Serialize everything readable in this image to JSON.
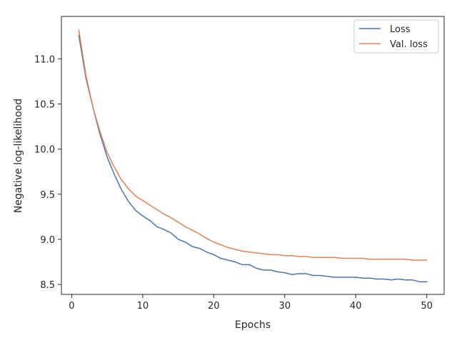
{
  "chart_data": {
    "type": "line",
    "xlabel": "Epochs",
    "ylabel": "Negative log-likelihood",
    "xlim": [
      -1.45,
      52.45
    ],
    "ylim": [
      8.39,
      11.47
    ],
    "xticks": [
      0,
      10,
      20,
      30,
      40,
      50
    ],
    "yticks": [
      8.5,
      9.0,
      9.5,
      10.0,
      10.5,
      11.0
    ],
    "ytick_labels": [
      "8.5",
      "9.0",
      "9.5",
      "10.0",
      "10.5",
      "11.0"
    ],
    "grid": false,
    "legend_position": "top-right",
    "x": [
      1,
      2,
      3,
      4,
      5,
      6,
      7,
      8,
      9,
      10,
      11,
      12,
      13,
      14,
      15,
      16,
      17,
      18,
      19,
      20,
      21,
      22,
      23,
      24,
      25,
      26,
      27,
      28,
      29,
      30,
      31,
      32,
      33,
      34,
      35,
      36,
      37,
      38,
      39,
      40,
      41,
      42,
      43,
      44,
      45,
      46,
      47,
      48,
      49,
      50
    ],
    "series": [
      {
        "name": "Loss",
        "color": "#4c72b0",
        "values": [
          11.26,
          10.79,
          10.46,
          10.16,
          9.91,
          9.72,
          9.55,
          9.42,
          9.32,
          9.26,
          9.21,
          9.14,
          9.11,
          9.07,
          9.0,
          8.97,
          8.92,
          8.9,
          8.86,
          8.83,
          8.79,
          8.77,
          8.75,
          8.72,
          8.72,
          8.68,
          8.66,
          8.66,
          8.64,
          8.63,
          8.61,
          8.62,
          8.62,
          8.6,
          8.6,
          8.59,
          8.58,
          8.58,
          8.58,
          8.58,
          8.57,
          8.57,
          8.56,
          8.56,
          8.55,
          8.56,
          8.55,
          8.55,
          8.53,
          8.53
        ]
      },
      {
        "name": "Val. loss",
        "color": "#dd8452",
        "values": [
          11.32,
          10.82,
          10.46,
          10.19,
          9.96,
          9.8,
          9.66,
          9.56,
          9.48,
          9.43,
          9.38,
          9.33,
          9.28,
          9.24,
          9.19,
          9.14,
          9.1,
          9.06,
          9.01,
          8.97,
          8.94,
          8.91,
          8.89,
          8.87,
          8.86,
          8.85,
          8.84,
          8.83,
          8.83,
          8.82,
          8.82,
          8.81,
          8.81,
          8.8,
          8.8,
          8.8,
          8.8,
          8.79,
          8.79,
          8.79,
          8.79,
          8.78,
          8.78,
          8.78,
          8.78,
          8.78,
          8.78,
          8.77,
          8.77,
          8.77
        ]
      }
    ]
  }
}
